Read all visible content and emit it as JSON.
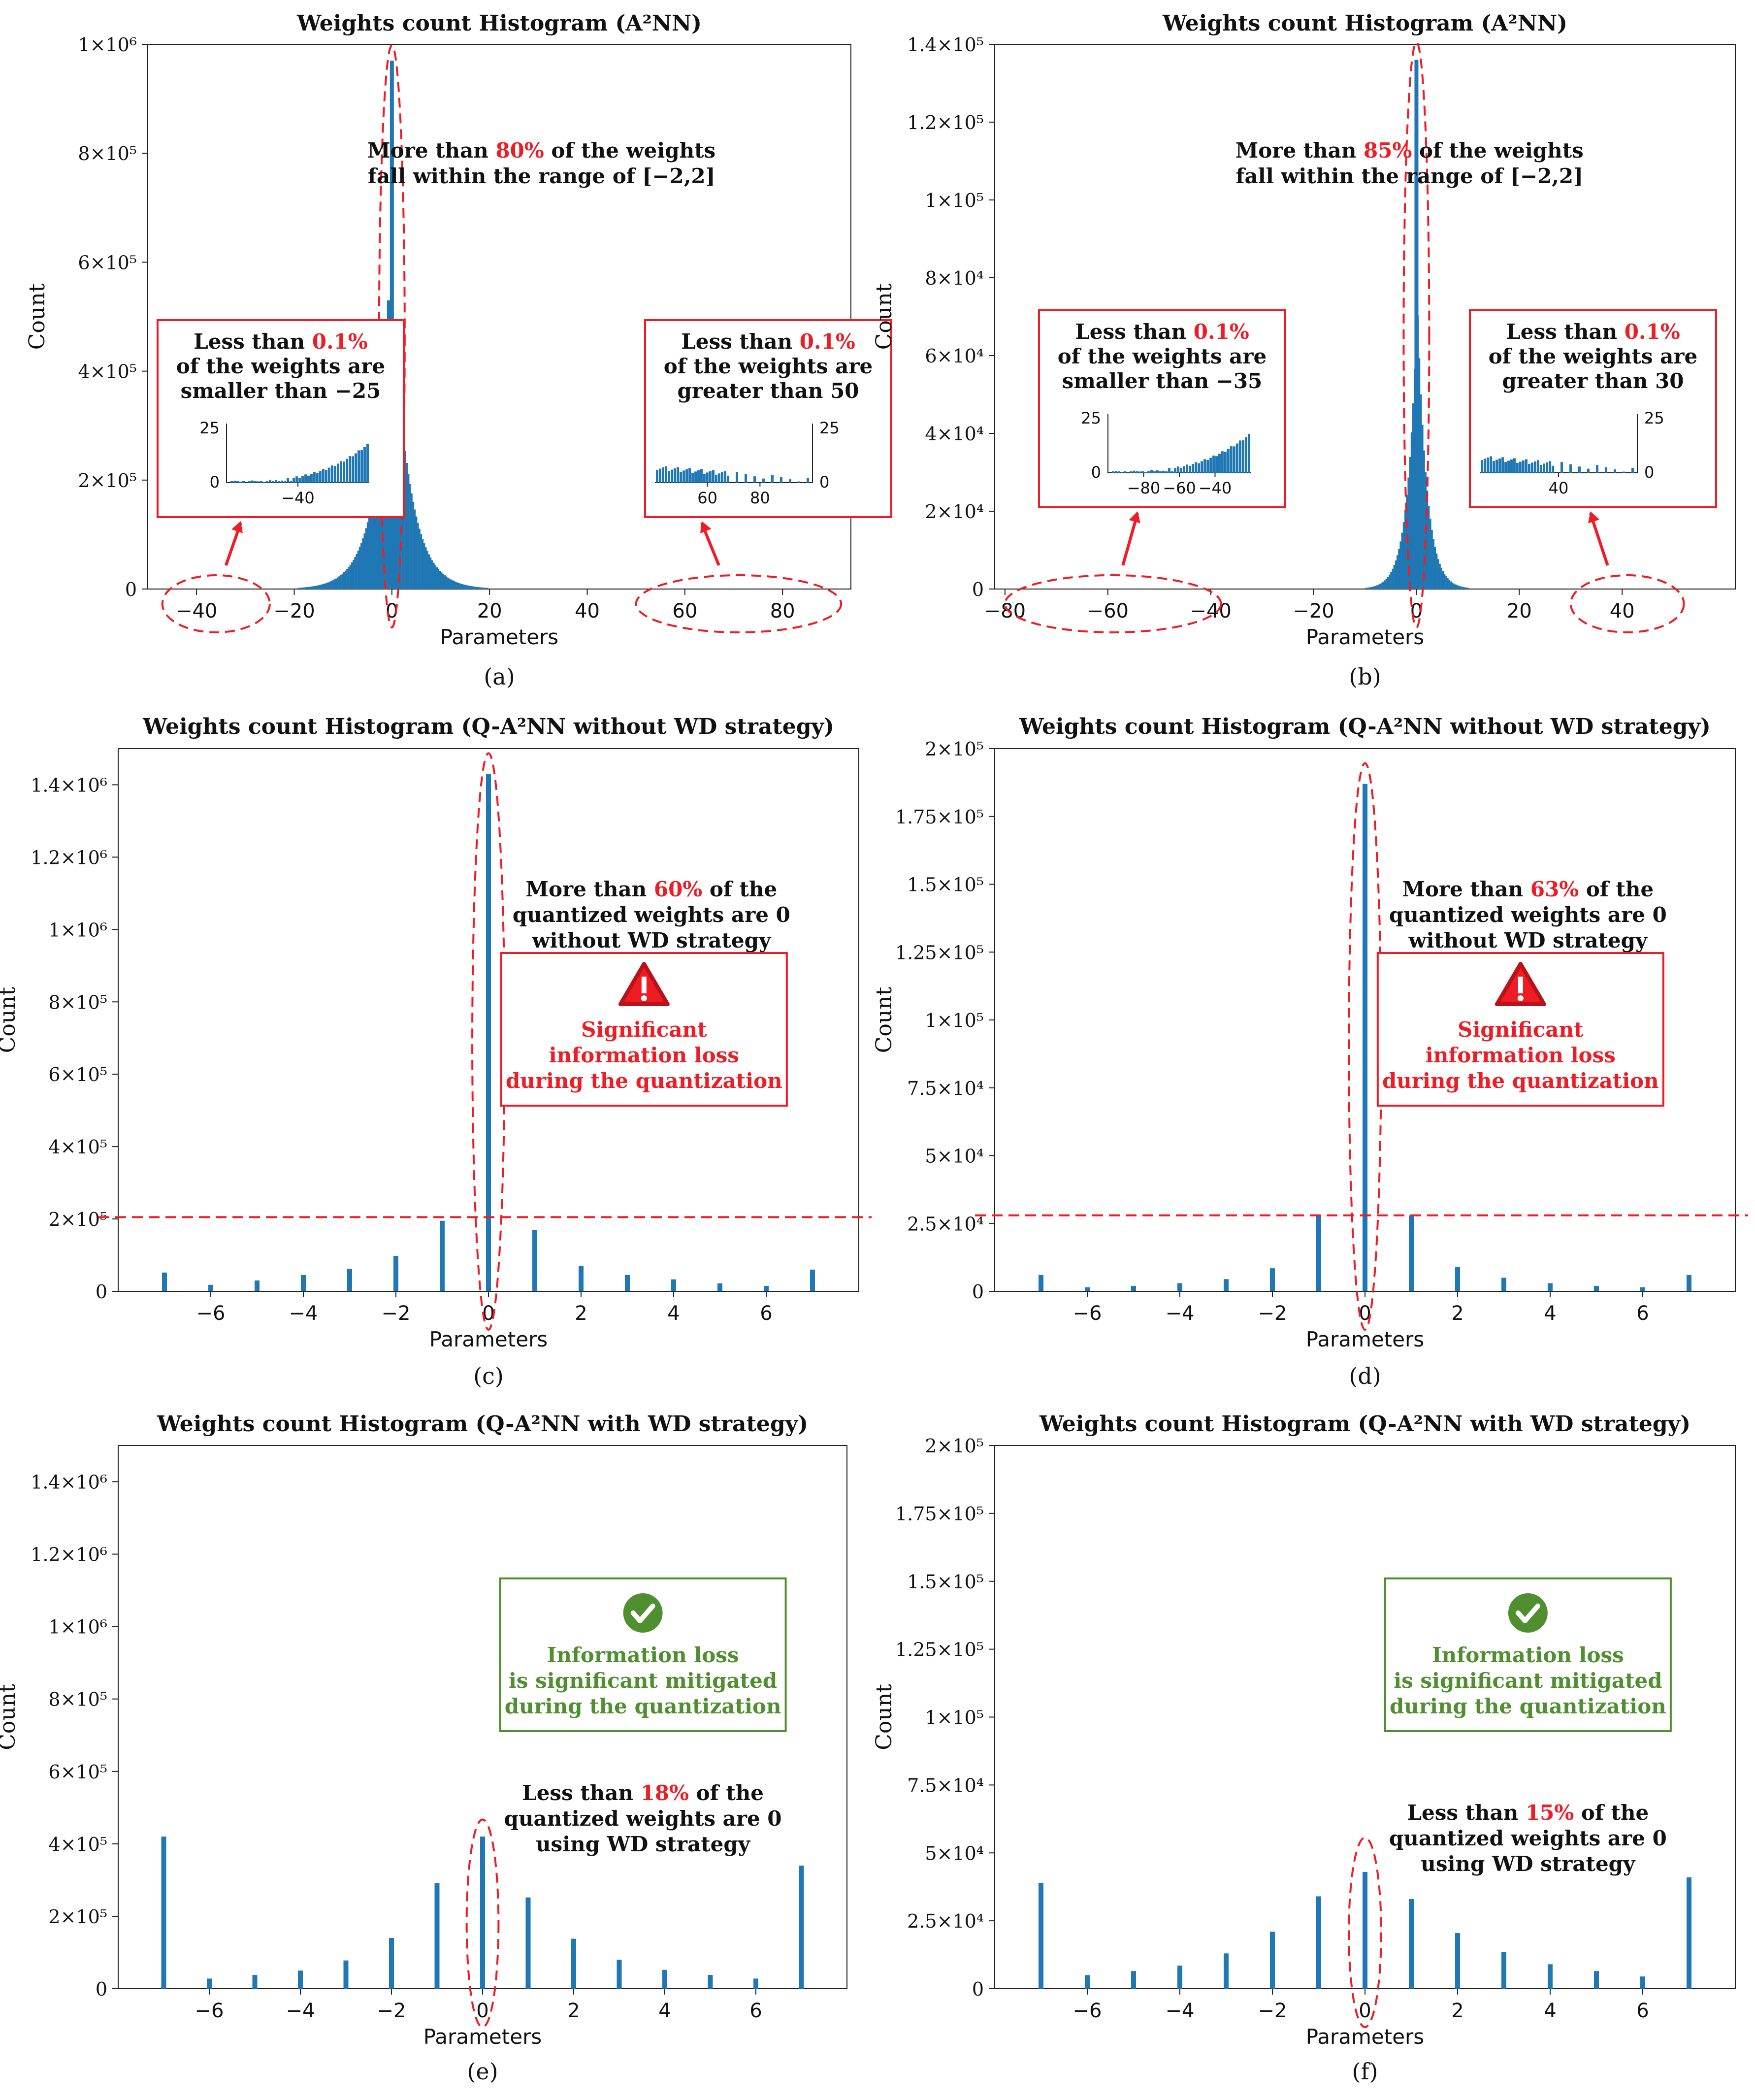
{
  "colors": {
    "bar": "#1f77b4",
    "highlight": "#ee1c24",
    "ok": "#4f8f2f",
    "axis": "#222222"
  },
  "chart_data": [
    {
      "panel": "(a)",
      "type": "bar",
      "title": "Weights count Histogram (A²NN)",
      "xlabel": "Parameters",
      "ylabel": "Count",
      "xlim": [
        -50,
        94
      ],
      "ylim": [
        0,
        1000000
      ],
      "xticks": [
        -40,
        -20,
        0,
        20,
        40,
        60,
        80
      ],
      "yticks": [
        {
          "v": 0,
          "label": "0"
        },
        {
          "v": 200000,
          "label": "2×10⁵"
        },
        {
          "v": 400000,
          "label": "4×10⁵"
        },
        {
          "v": 600000,
          "label": "6×10⁵"
        },
        {
          "v": 800000,
          "label": "8×10⁵"
        },
        {
          "v": 1000000,
          "label": "1×10⁶"
        }
      ],
      "peak": {
        "x": 0,
        "value": 970000,
        "spread": 3.5
      },
      "extra_bars": [
        {
          "x": 0.6,
          "value": 480000
        },
        {
          "x": -0.6,
          "value": 530000
        },
        {
          "x": -1.2,
          "value": 140000
        },
        {
          "x": 1.2,
          "value": 120000
        }
      ],
      "hline": null,
      "dashed_ellipse": {
        "cx": 0,
        "halfwidth": 2.6,
        "y_top": 980000
      },
      "note": {
        "prefix": "More than ",
        "highlight": "80%",
        "suffix": " of the weights",
        "line2": "fall within the range of [−2,2]"
      },
      "left_box": {
        "prefix": "Less than ",
        "highlight": "0.1%",
        "line2": "of the weights are",
        "line3": "smaller than −25",
        "inset_ticks": [
          "−40"
        ],
        "inset_yticks": [
          "0",
          "25"
        ]
      },
      "right_box": {
        "prefix": "Less than ",
        "highlight": "0.1%",
        "line2": "of the weights are",
        "line3": "greater than 50",
        "inset_ticks": [
          "60",
          "80"
        ],
        "inset_yticks": [
          "0",
          "25"
        ]
      },
      "left_ellipse_range": [
        -47,
        -25
      ],
      "right_ellipse_range": [
        50,
        92
      ]
    },
    {
      "panel": "(b)",
      "type": "bar",
      "title": "Weights count Histogram (A²NN)",
      "xlabel": "Parameters",
      "ylabel": "Count",
      "xlim": [
        -82,
        62
      ],
      "ylim": [
        0,
        140000
      ],
      "xticks": [
        -80,
        -60,
        -40,
        -20,
        0,
        20,
        40
      ],
      "yticks": [
        {
          "v": 0,
          "label": "0"
        },
        {
          "v": 20000,
          "label": "2×10⁴"
        },
        {
          "v": 40000,
          "label": "4×10⁴"
        },
        {
          "v": 60000,
          "label": "6×10⁴"
        },
        {
          "v": 80000,
          "label": "8×10⁴"
        },
        {
          "v": 100000,
          "label": "1×10⁵"
        },
        {
          "v": 120000,
          "label": "1.2×10⁵"
        },
        {
          "v": 140000,
          "label": "1.4×10⁵"
        }
      ],
      "peak": {
        "x": 0,
        "value": 136000,
        "spread": 1.8
      },
      "extra_bars": [
        {
          "x": 0.5,
          "value": 45000
        },
        {
          "x": -0.5,
          "value": 35000
        }
      ],
      "hline": null,
      "dashed_ellipse": {
        "cx": 0,
        "halfwidth": 1.7,
        "y_top": 138000
      },
      "note": {
        "prefix": "More than ",
        "highlight": "85%",
        "suffix": " of the weights",
        "line2": "fall within the range of [−2,2]"
      },
      "left_box": {
        "prefix": "Less than ",
        "highlight": "0.1%",
        "line2": "of the weights are",
        "line3": "smaller than −35",
        "inset_ticks": [
          "−80",
          "−60",
          "−40"
        ],
        "inset_yticks": [
          "0",
          "25"
        ]
      },
      "right_box": {
        "prefix": "Less than ",
        "highlight": "0.1%",
        "line2": "of the weights are",
        "line3": "greater than 30",
        "inset_ticks": [
          "40"
        ],
        "inset_yticks": [
          "0",
          "25"
        ]
      },
      "left_ellipse_range": [
        -80,
        -38
      ],
      "right_ellipse_range": [
        30,
        52
      ]
    },
    {
      "panel": "(c)",
      "type": "bar",
      "title": "Weights count Histogram (Q-A²NN without WD strategy)",
      "xlabel": "Parameters",
      "ylabel": "Count",
      "xlim": [
        -8,
        8
      ],
      "ylim": [
        0,
        1500000
      ],
      "xticks": [
        -6,
        -4,
        -2,
        0,
        2,
        4,
        6
      ],
      "yticks": [
        {
          "v": 0,
          "label": "0"
        },
        {
          "v": 200000,
          "label": "2×10⁵"
        },
        {
          "v": 400000,
          "label": "4×10⁵"
        },
        {
          "v": 600000,
          "label": "6×10⁵"
        },
        {
          "v": 800000,
          "label": "8×10⁵"
        },
        {
          "v": 1000000,
          "label": "1×10⁶"
        },
        {
          "v": 1200000,
          "label": "1.2×10⁶"
        },
        {
          "v": 1400000,
          "label": "1.4×10⁶"
        }
      ],
      "x": [
        -7,
        -6,
        -5,
        -4,
        -3,
        -2,
        -1,
        0,
        1,
        2,
        3,
        4,
        5,
        6,
        7
      ],
      "values": [
        52000,
        18000,
        30000,
        45000,
        62000,
        98000,
        195000,
        1430000,
        170000,
        70000,
        45000,
        33000,
        22000,
        15000,
        60000
      ],
      "hline": 205000,
      "dashed_ellipse": {
        "cx": 0,
        "halfwidth": 0.35,
        "y_top": 1460000
      },
      "note": {
        "prefix": "More than ",
        "highlight": "60%",
        "suffix": " of the",
        "line2": "quantized weights are 0",
        "line3": "without WD strategy"
      },
      "status_box": {
        "kind": "warning",
        "line1": "Significant",
        "line2": "information loss",
        "line3": "during the quantization"
      }
    },
    {
      "panel": "(d)",
      "type": "bar",
      "title": "Weights count Histogram (Q-A²NN without WD strategy)",
      "xlabel": "Parameters",
      "ylabel": "Count",
      "xlim": [
        -8,
        8
      ],
      "ylim": [
        0,
        200000
      ],
      "xticks": [
        -6,
        -4,
        -2,
        0,
        2,
        4,
        6
      ],
      "yticks": [
        {
          "v": 0,
          "label": "0"
        },
        {
          "v": 25000,
          "label": "2.5×10⁴"
        },
        {
          "v": 50000,
          "label": "5×10⁴"
        },
        {
          "v": 75000,
          "label": "7.5×10⁴"
        },
        {
          "v": 100000,
          "label": "1×10⁵"
        },
        {
          "v": 125000,
          "label": "1.25×10⁵"
        },
        {
          "v": 150000,
          "label": "1.5×10⁵"
        },
        {
          "v": 175000,
          "label": "1.75×10⁵"
        },
        {
          "v": 200000,
          "label": "2×10⁵"
        }
      ],
      "x": [
        -7,
        -6,
        -5,
        -4,
        -3,
        -2,
        -1,
        0,
        1,
        2,
        3,
        4,
        5,
        6,
        7
      ],
      "values": [
        6000,
        1500,
        2000,
        3000,
        4500,
        8500,
        28000,
        187000,
        28000,
        9000,
        5000,
        3000,
        2000,
        1500,
        6000
      ],
      "hline": 28000,
      "dashed_ellipse": {
        "cx": 0,
        "halfwidth": 0.35,
        "y_top": 191000
      },
      "note": {
        "prefix": "More than ",
        "highlight": "63%",
        "suffix": " of the",
        "line2": "quantized weights are 0",
        "line3": "without WD strategy"
      },
      "status_box": {
        "kind": "warning",
        "line1": "Significant",
        "line2": "information loss",
        "line3": "during the quantization"
      }
    },
    {
      "panel": "(e)",
      "type": "bar",
      "title": "Weights count Histogram (Q-A²NN with WD strategy)",
      "xlabel": "Parameters",
      "ylabel": "Count",
      "xlim": [
        -8,
        8
      ],
      "ylim": [
        0,
        1500000
      ],
      "xticks": [
        -6,
        -4,
        -2,
        0,
        2,
        4,
        6
      ],
      "yticks": [
        {
          "v": 0,
          "label": "0"
        },
        {
          "v": 200000,
          "label": "2×10⁵"
        },
        {
          "v": 400000,
          "label": "4×10⁵"
        },
        {
          "v": 600000,
          "label": "6×10⁵"
        },
        {
          "v": 800000,
          "label": "8×10⁵"
        },
        {
          "v": 1000000,
          "label": "1×10⁶"
        },
        {
          "v": 1200000,
          "label": "1.2×10⁶"
        },
        {
          "v": 1400000,
          "label": "1.4×10⁶"
        }
      ],
      "x": [
        -7,
        -6,
        -5,
        -4,
        -3,
        -2,
        -1,
        0,
        1,
        2,
        3,
        4,
        5,
        6,
        7
      ],
      "values": [
        420000,
        28000,
        38000,
        50000,
        78000,
        140000,
        292000,
        420000,
        252000,
        138000,
        80000,
        52000,
        38000,
        28000,
        340000
      ],
      "hline": null,
      "dashed_ellipse": {
        "cx": 0,
        "halfwidth": 0.35,
        "y_top": 440000
      },
      "note": {
        "prefix": "Less than ",
        "highlight": "18%",
        "suffix": " of the",
        "line2": "quantized weights are 0",
        "line3": "using WD strategy"
      },
      "status_box": {
        "kind": "ok",
        "line1": "Information loss",
        "line2": "is significant mitigated",
        "line3": "during the quantization"
      }
    },
    {
      "panel": "(f)",
      "type": "bar",
      "title": "Weights count Histogram (Q-A²NN with WD strategy)",
      "xlabel": "Parameters",
      "ylabel": "Count",
      "xlim": [
        -8,
        8
      ],
      "ylim": [
        0,
        200000
      ],
      "xticks": [
        -6,
        -4,
        -2,
        0,
        2,
        4,
        6
      ],
      "yticks": [
        {
          "v": 0,
          "label": "0"
        },
        {
          "v": 25000,
          "label": "2.5×10⁴"
        },
        {
          "v": 50000,
          "label": "5×10⁴"
        },
        {
          "v": 75000,
          "label": "7.5×10⁴"
        },
        {
          "v": 100000,
          "label": "1×10⁵"
        },
        {
          "v": 125000,
          "label": "1.25×10⁵"
        },
        {
          "v": 150000,
          "label": "1.5×10⁵"
        },
        {
          "v": 175000,
          "label": "1.75×10⁵"
        },
        {
          "v": 200000,
          "label": "2×10⁵"
        }
      ],
      "x": [
        -7,
        -6,
        -5,
        -4,
        -3,
        -2,
        -1,
        0,
        1,
        2,
        3,
        4,
        5,
        6,
        7
      ],
      "values": [
        39000,
        5000,
        6500,
        8500,
        13000,
        21000,
        34000,
        43000,
        33000,
        20500,
        13500,
        9000,
        6500,
        4500,
        41000
      ],
      "hline": null,
      "dashed_ellipse": {
        "cx": 0,
        "halfwidth": 0.35,
        "y_top": 52000
      },
      "note": {
        "prefix": "Less than ",
        "highlight": "15%",
        "suffix": " of the",
        "line2": "quantized weights are 0",
        "line3": "using WD strategy"
      },
      "status_box": {
        "kind": "ok",
        "line1": "Information loss",
        "line2": "is significant mitigated",
        "line3": "during the quantization"
      }
    }
  ]
}
